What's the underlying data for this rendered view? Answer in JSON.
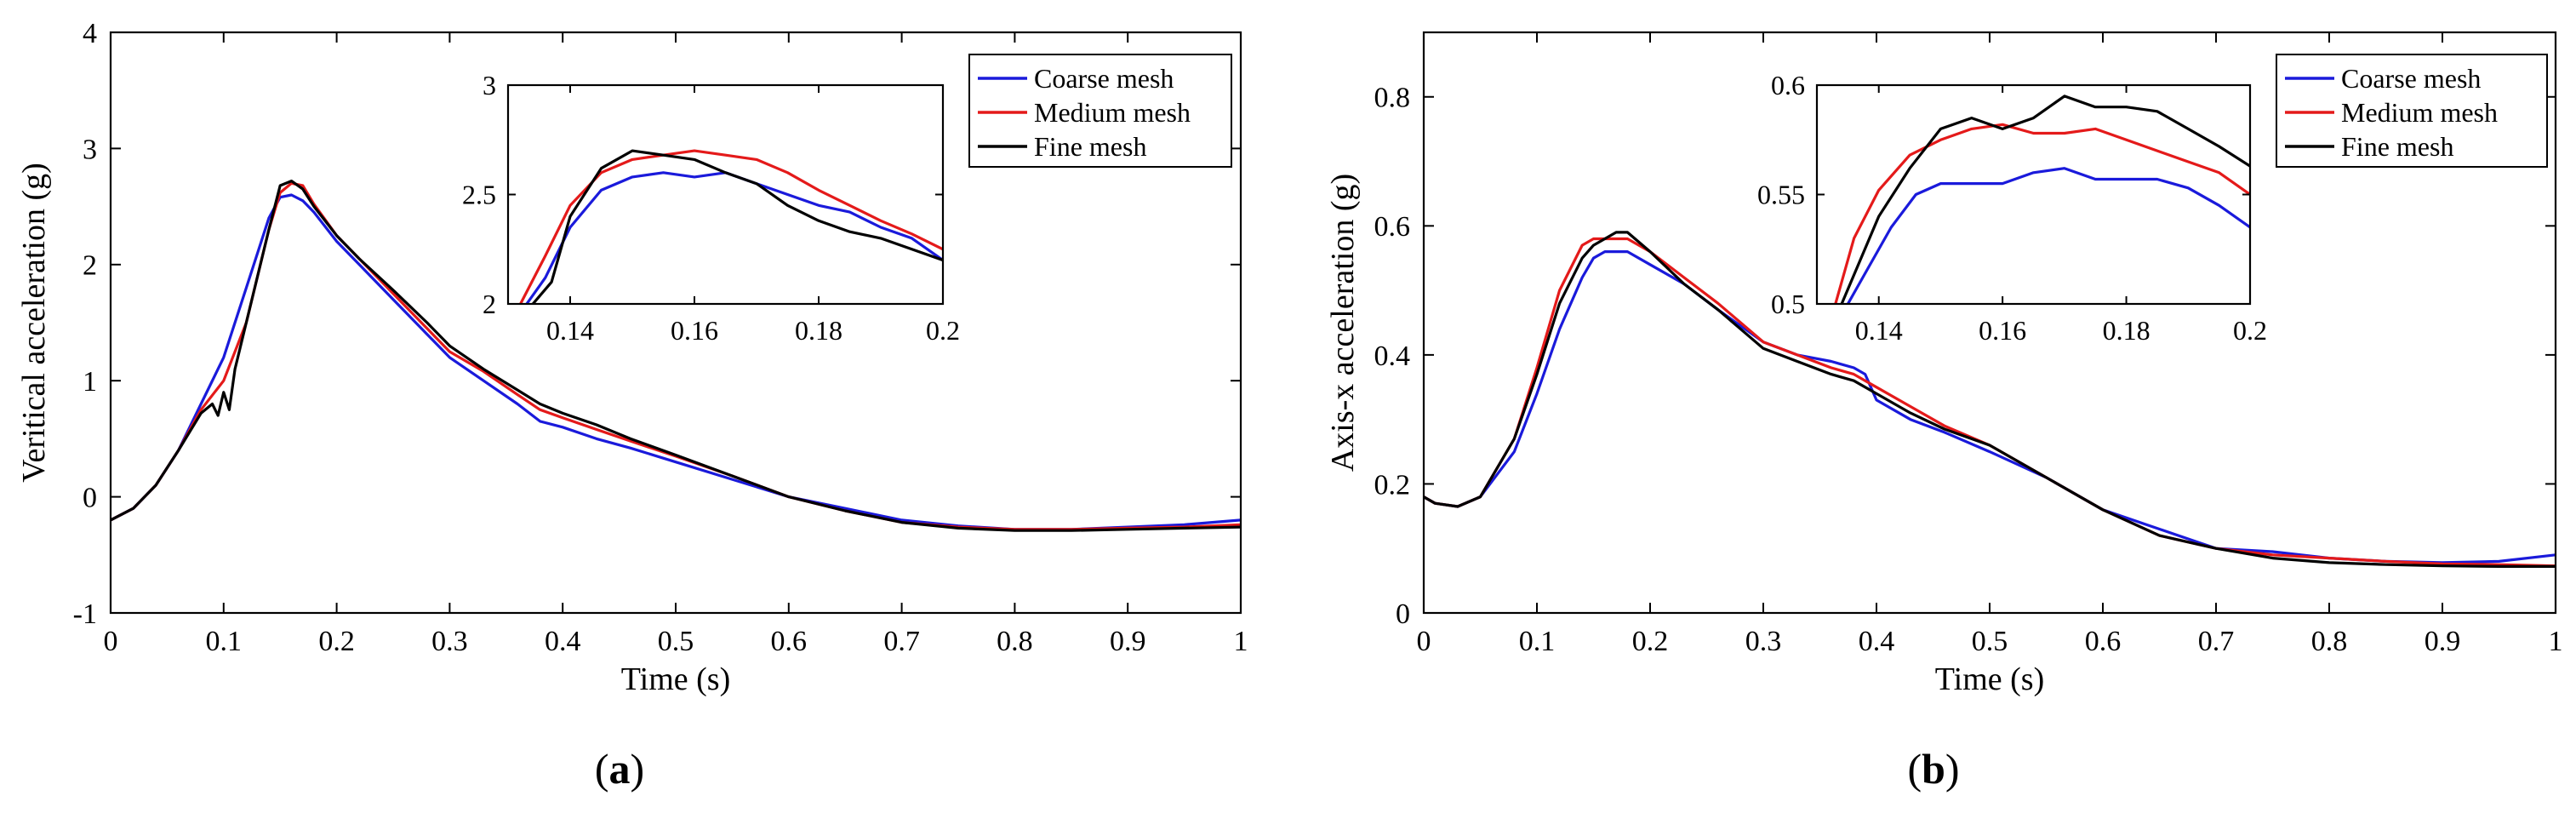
{
  "colors": {
    "coarse": "#1a1adb",
    "medium": "#e41a1a",
    "fine": "#000000"
  },
  "chart_data": [
    {
      "type": "line",
      "panel_label": "(a)",
      "xlabel": "Time (s)",
      "ylabel": "Veritical acceleration (g)",
      "xlim": [
        0,
        1
      ],
      "ylim": [
        -1,
        4
      ],
      "xticks": [
        0,
        0.1,
        0.2,
        0.3,
        0.4,
        0.5,
        0.6,
        0.7,
        0.8,
        0.9,
        1
      ],
      "xtick_labels": [
        "0",
        "0.1",
        "0.2",
        "0.3",
        "0.4",
        "0.5",
        "0.6",
        "0.7",
        "0.8",
        "0.9",
        "1"
      ],
      "yticks": [
        -1,
        0,
        1,
        2,
        3,
        4
      ],
      "ytick_labels": [
        "-1",
        "0",
        "1",
        "2",
        "3",
        "4"
      ],
      "legend": [
        "Coarse mesh",
        "Medium mesh",
        "Fine mesh"
      ],
      "legend_position": "top-right",
      "series": [
        {
          "name": "Coarse mesh",
          "x": [
            0,
            0.02,
            0.04,
            0.06,
            0.08,
            0.1,
            0.12,
            0.14,
            0.15,
            0.16,
            0.17,
            0.18,
            0.2,
            0.22,
            0.25,
            0.28,
            0.3,
            0.33,
            0.36,
            0.38,
            0.4,
            0.43,
            0.46,
            0.5,
            0.55,
            0.6,
            0.65,
            0.7,
            0.75,
            0.8,
            0.85,
            0.9,
            0.95,
            1.0
          ],
          "y": [
            -0.2,
            -0.1,
            0.1,
            0.4,
            0.8,
            1.2,
            1.8,
            2.4,
            2.58,
            2.6,
            2.55,
            2.45,
            2.2,
            2.0,
            1.7,
            1.4,
            1.2,
            1.0,
            0.8,
            0.65,
            0.6,
            0.5,
            0.42,
            0.3,
            0.15,
            0.0,
            -0.1,
            -0.2,
            -0.25,
            -0.28,
            -0.28,
            -0.26,
            -0.24,
            -0.2
          ]
        },
        {
          "name": "Medium mesh",
          "x": [
            0,
            0.02,
            0.04,
            0.06,
            0.08,
            0.1,
            0.12,
            0.14,
            0.15,
            0.16,
            0.17,
            0.18,
            0.2,
            0.22,
            0.25,
            0.28,
            0.3,
            0.33,
            0.36,
            0.38,
            0.4,
            0.43,
            0.46,
            0.5,
            0.55,
            0.6,
            0.65,
            0.7,
            0.75,
            0.8,
            0.85,
            0.9,
            0.95,
            1.0
          ],
          "y": [
            -0.2,
            -0.1,
            0.1,
            0.4,
            0.75,
            1.0,
            1.5,
            2.3,
            2.62,
            2.7,
            2.68,
            2.52,
            2.25,
            2.05,
            1.75,
            1.45,
            1.25,
            1.08,
            0.88,
            0.75,
            0.68,
            0.58,
            0.48,
            0.35,
            0.18,
            0.0,
            -0.12,
            -0.22,
            -0.26,
            -0.28,
            -0.28,
            -0.27,
            -0.26,
            -0.24
          ]
        },
        {
          "name": "Fine mesh",
          "x": [
            0,
            0.02,
            0.04,
            0.06,
            0.08,
            0.09,
            0.095,
            0.1,
            0.105,
            0.11,
            0.12,
            0.14,
            0.15,
            0.16,
            0.17,
            0.18,
            0.2,
            0.22,
            0.25,
            0.28,
            0.3,
            0.33,
            0.36,
            0.38,
            0.4,
            0.43,
            0.46,
            0.5,
            0.55,
            0.6,
            0.65,
            0.7,
            0.75,
            0.8,
            0.85,
            0.9,
            0.95,
            1.0
          ],
          "y": [
            -0.2,
            -0.1,
            0.1,
            0.4,
            0.72,
            0.8,
            0.7,
            0.9,
            0.75,
            1.1,
            1.5,
            2.3,
            2.68,
            2.72,
            2.65,
            2.5,
            2.25,
            2.05,
            1.78,
            1.5,
            1.3,
            1.1,
            0.92,
            0.8,
            0.72,
            0.62,
            0.5,
            0.36,
            0.18,
            0.0,
            -0.12,
            -0.22,
            -0.27,
            -0.29,
            -0.29,
            -0.28,
            -0.27,
            -0.26
          ]
        }
      ],
      "inset": {
        "xlim": [
          0.13,
          0.2
        ],
        "ylim": [
          2,
          3
        ],
        "xticks": [
          0.14,
          0.16,
          0.18,
          0.2
        ],
        "xtick_labels": [
          "0.14",
          "0.16",
          "0.18",
          "0.2"
        ],
        "yticks": [
          2,
          2.5,
          3
        ],
        "ytick_labels": [
          "2",
          "2.5",
          "3"
        ],
        "series": [
          {
            "name": "Coarse mesh",
            "x": [
              0.133,
              0.136,
              0.14,
              0.145,
              0.15,
              0.155,
              0.16,
              0.165,
              0.17,
              0.175,
              0.18,
              0.185,
              0.19,
              0.195,
              0.2
            ],
            "y": [
              2.0,
              2.12,
              2.35,
              2.52,
              2.58,
              2.6,
              2.58,
              2.6,
              2.55,
              2.5,
              2.45,
              2.42,
              2.35,
              2.3,
              2.2
            ]
          },
          {
            "name": "Medium mesh",
            "x": [
              0.132,
              0.136,
              0.14,
              0.145,
              0.15,
              0.155,
              0.16,
              0.165,
              0.17,
              0.175,
              0.18,
              0.185,
              0.19,
              0.195,
              0.2
            ],
            "y": [
              2.0,
              2.22,
              2.45,
              2.6,
              2.66,
              2.68,
              2.7,
              2.68,
              2.66,
              2.6,
              2.52,
              2.45,
              2.38,
              2.32,
              2.25
            ]
          },
          {
            "name": "Fine mesh",
            "x": [
              0.134,
              0.137,
              0.14,
              0.145,
              0.15,
              0.155,
              0.16,
              0.165,
              0.17,
              0.175,
              0.18,
              0.185,
              0.19,
              0.195,
              0.2
            ],
            "y": [
              2.0,
              2.1,
              2.4,
              2.62,
              2.7,
              2.68,
              2.66,
              2.6,
              2.55,
              2.45,
              2.38,
              2.33,
              2.3,
              2.25,
              2.2
            ]
          }
        ]
      }
    },
    {
      "type": "line",
      "panel_label": "(b)",
      "xlabel": "Time (s)",
      "ylabel": "Axis-x acceleration (g)",
      "xlim": [
        0,
        1
      ],
      "ylim": [
        0,
        0.9
      ],
      "xticks": [
        0,
        0.1,
        0.2,
        0.3,
        0.4,
        0.5,
        0.6,
        0.7,
        0.8,
        0.9,
        1
      ],
      "xtick_labels": [
        "0",
        "0.1",
        "0.2",
        "0.3",
        "0.4",
        "0.5",
        "0.6",
        "0.7",
        "0.8",
        "0.9",
        "1"
      ],
      "yticks": [
        0,
        0.2,
        0.4,
        0.6,
        0.8
      ],
      "ytick_labels": [
        "0",
        "0.2",
        "0.4",
        "0.6",
        "0.8"
      ],
      "legend": [
        "Coarse mesh",
        "Medium mesh",
        "Fine mesh"
      ],
      "legend_position": "top-right",
      "series": [
        {
          "name": "Coarse mesh",
          "x": [
            0,
            0.01,
            0.03,
            0.05,
            0.08,
            0.1,
            0.12,
            0.14,
            0.15,
            0.16,
            0.18,
            0.2,
            0.23,
            0.26,
            0.3,
            0.33,
            0.36,
            0.38,
            0.39,
            0.4,
            0.43,
            0.46,
            0.5,
            0.55,
            0.6,
            0.65,
            0.7,
            0.75,
            0.8,
            0.85,
            0.9,
            0.95,
            1.0
          ],
          "y": [
            0.18,
            0.17,
            0.165,
            0.18,
            0.25,
            0.34,
            0.44,
            0.52,
            0.55,
            0.56,
            0.56,
            0.54,
            0.51,
            0.47,
            0.42,
            0.4,
            0.39,
            0.38,
            0.37,
            0.33,
            0.3,
            0.28,
            0.25,
            0.21,
            0.16,
            0.13,
            0.1,
            0.095,
            0.085,
            0.08,
            0.078,
            0.08,
            0.09
          ]
        },
        {
          "name": "Medium mesh",
          "x": [
            0,
            0.01,
            0.03,
            0.05,
            0.08,
            0.1,
            0.12,
            0.14,
            0.15,
            0.16,
            0.18,
            0.2,
            0.23,
            0.26,
            0.3,
            0.33,
            0.36,
            0.38,
            0.4,
            0.43,
            0.46,
            0.5,
            0.55,
            0.6,
            0.65,
            0.7,
            0.75,
            0.8,
            0.85,
            0.9,
            0.95,
            1.0
          ],
          "y": [
            0.18,
            0.17,
            0.165,
            0.18,
            0.27,
            0.38,
            0.5,
            0.57,
            0.58,
            0.58,
            0.58,
            0.56,
            0.52,
            0.48,
            0.42,
            0.4,
            0.38,
            0.37,
            0.35,
            0.32,
            0.29,
            0.26,
            0.21,
            0.16,
            0.12,
            0.1,
            0.09,
            0.085,
            0.08,
            0.076,
            0.075,
            0.073
          ]
        },
        {
          "name": "Fine mesh",
          "x": [
            0,
            0.01,
            0.03,
            0.05,
            0.08,
            0.1,
            0.12,
            0.14,
            0.15,
            0.16,
            0.17,
            0.18,
            0.2,
            0.23,
            0.26,
            0.3,
            0.33,
            0.36,
            0.38,
            0.4,
            0.43,
            0.46,
            0.5,
            0.55,
            0.6,
            0.65,
            0.7,
            0.75,
            0.8,
            0.85,
            0.9,
            0.95,
            1.0
          ],
          "y": [
            0.18,
            0.17,
            0.165,
            0.18,
            0.27,
            0.37,
            0.48,
            0.55,
            0.57,
            0.58,
            0.59,
            0.59,
            0.56,
            0.51,
            0.47,
            0.41,
            0.39,
            0.37,
            0.36,
            0.34,
            0.31,
            0.285,
            0.26,
            0.21,
            0.16,
            0.12,
            0.1,
            0.085,
            0.078,
            0.075,
            0.073,
            0.072,
            0.072
          ]
        }
      ],
      "inset": {
        "xlim": [
          0.13,
          0.2
        ],
        "ylim": [
          0.5,
          0.6
        ],
        "xticks": [
          0.14,
          0.16,
          0.18,
          0.2
        ],
        "xtick_labels": [
          "0.14",
          "0.16",
          "0.18",
          "0.2"
        ],
        "yticks": [
          0.5,
          0.55,
          0.6
        ],
        "ytick_labels": [
          "0.5",
          "0.55",
          "0.6"
        ],
        "series": [
          {
            "name": "Coarse mesh",
            "x": [
              0.135,
              0.138,
              0.142,
              0.146,
              0.15,
              0.155,
              0.16,
              0.165,
              0.17,
              0.175,
              0.18,
              0.185,
              0.19,
              0.195,
              0.2
            ],
            "y": [
              0.5,
              0.515,
              0.535,
              0.55,
              0.555,
              0.555,
              0.555,
              0.56,
              0.562,
              0.557,
              0.557,
              0.557,
              0.553,
              0.545,
              0.535
            ]
          },
          {
            "name": "Medium mesh",
            "x": [
              0.133,
              0.136,
              0.14,
              0.145,
              0.15,
              0.155,
              0.16,
              0.165,
              0.17,
              0.175,
              0.18,
              0.185,
              0.19,
              0.195,
              0.2
            ],
            "y": [
              0.5,
              0.53,
              0.552,
              0.568,
              0.575,
              0.58,
              0.582,
              0.578,
              0.578,
              0.58,
              0.575,
              0.57,
              0.565,
              0.56,
              0.55
            ]
          },
          {
            "name": "Fine mesh",
            "x": [
              0.134,
              0.137,
              0.14,
              0.145,
              0.15,
              0.155,
              0.16,
              0.165,
              0.17,
              0.175,
              0.18,
              0.185,
              0.19,
              0.195,
              0.2
            ],
            "y": [
              0.5,
              0.52,
              0.54,
              0.562,
              0.58,
              0.585,
              0.58,
              0.585,
              0.595,
              0.59,
              0.59,
              0.588,
              0.58,
              0.572,
              0.563
            ]
          }
        ]
      }
    }
  ]
}
